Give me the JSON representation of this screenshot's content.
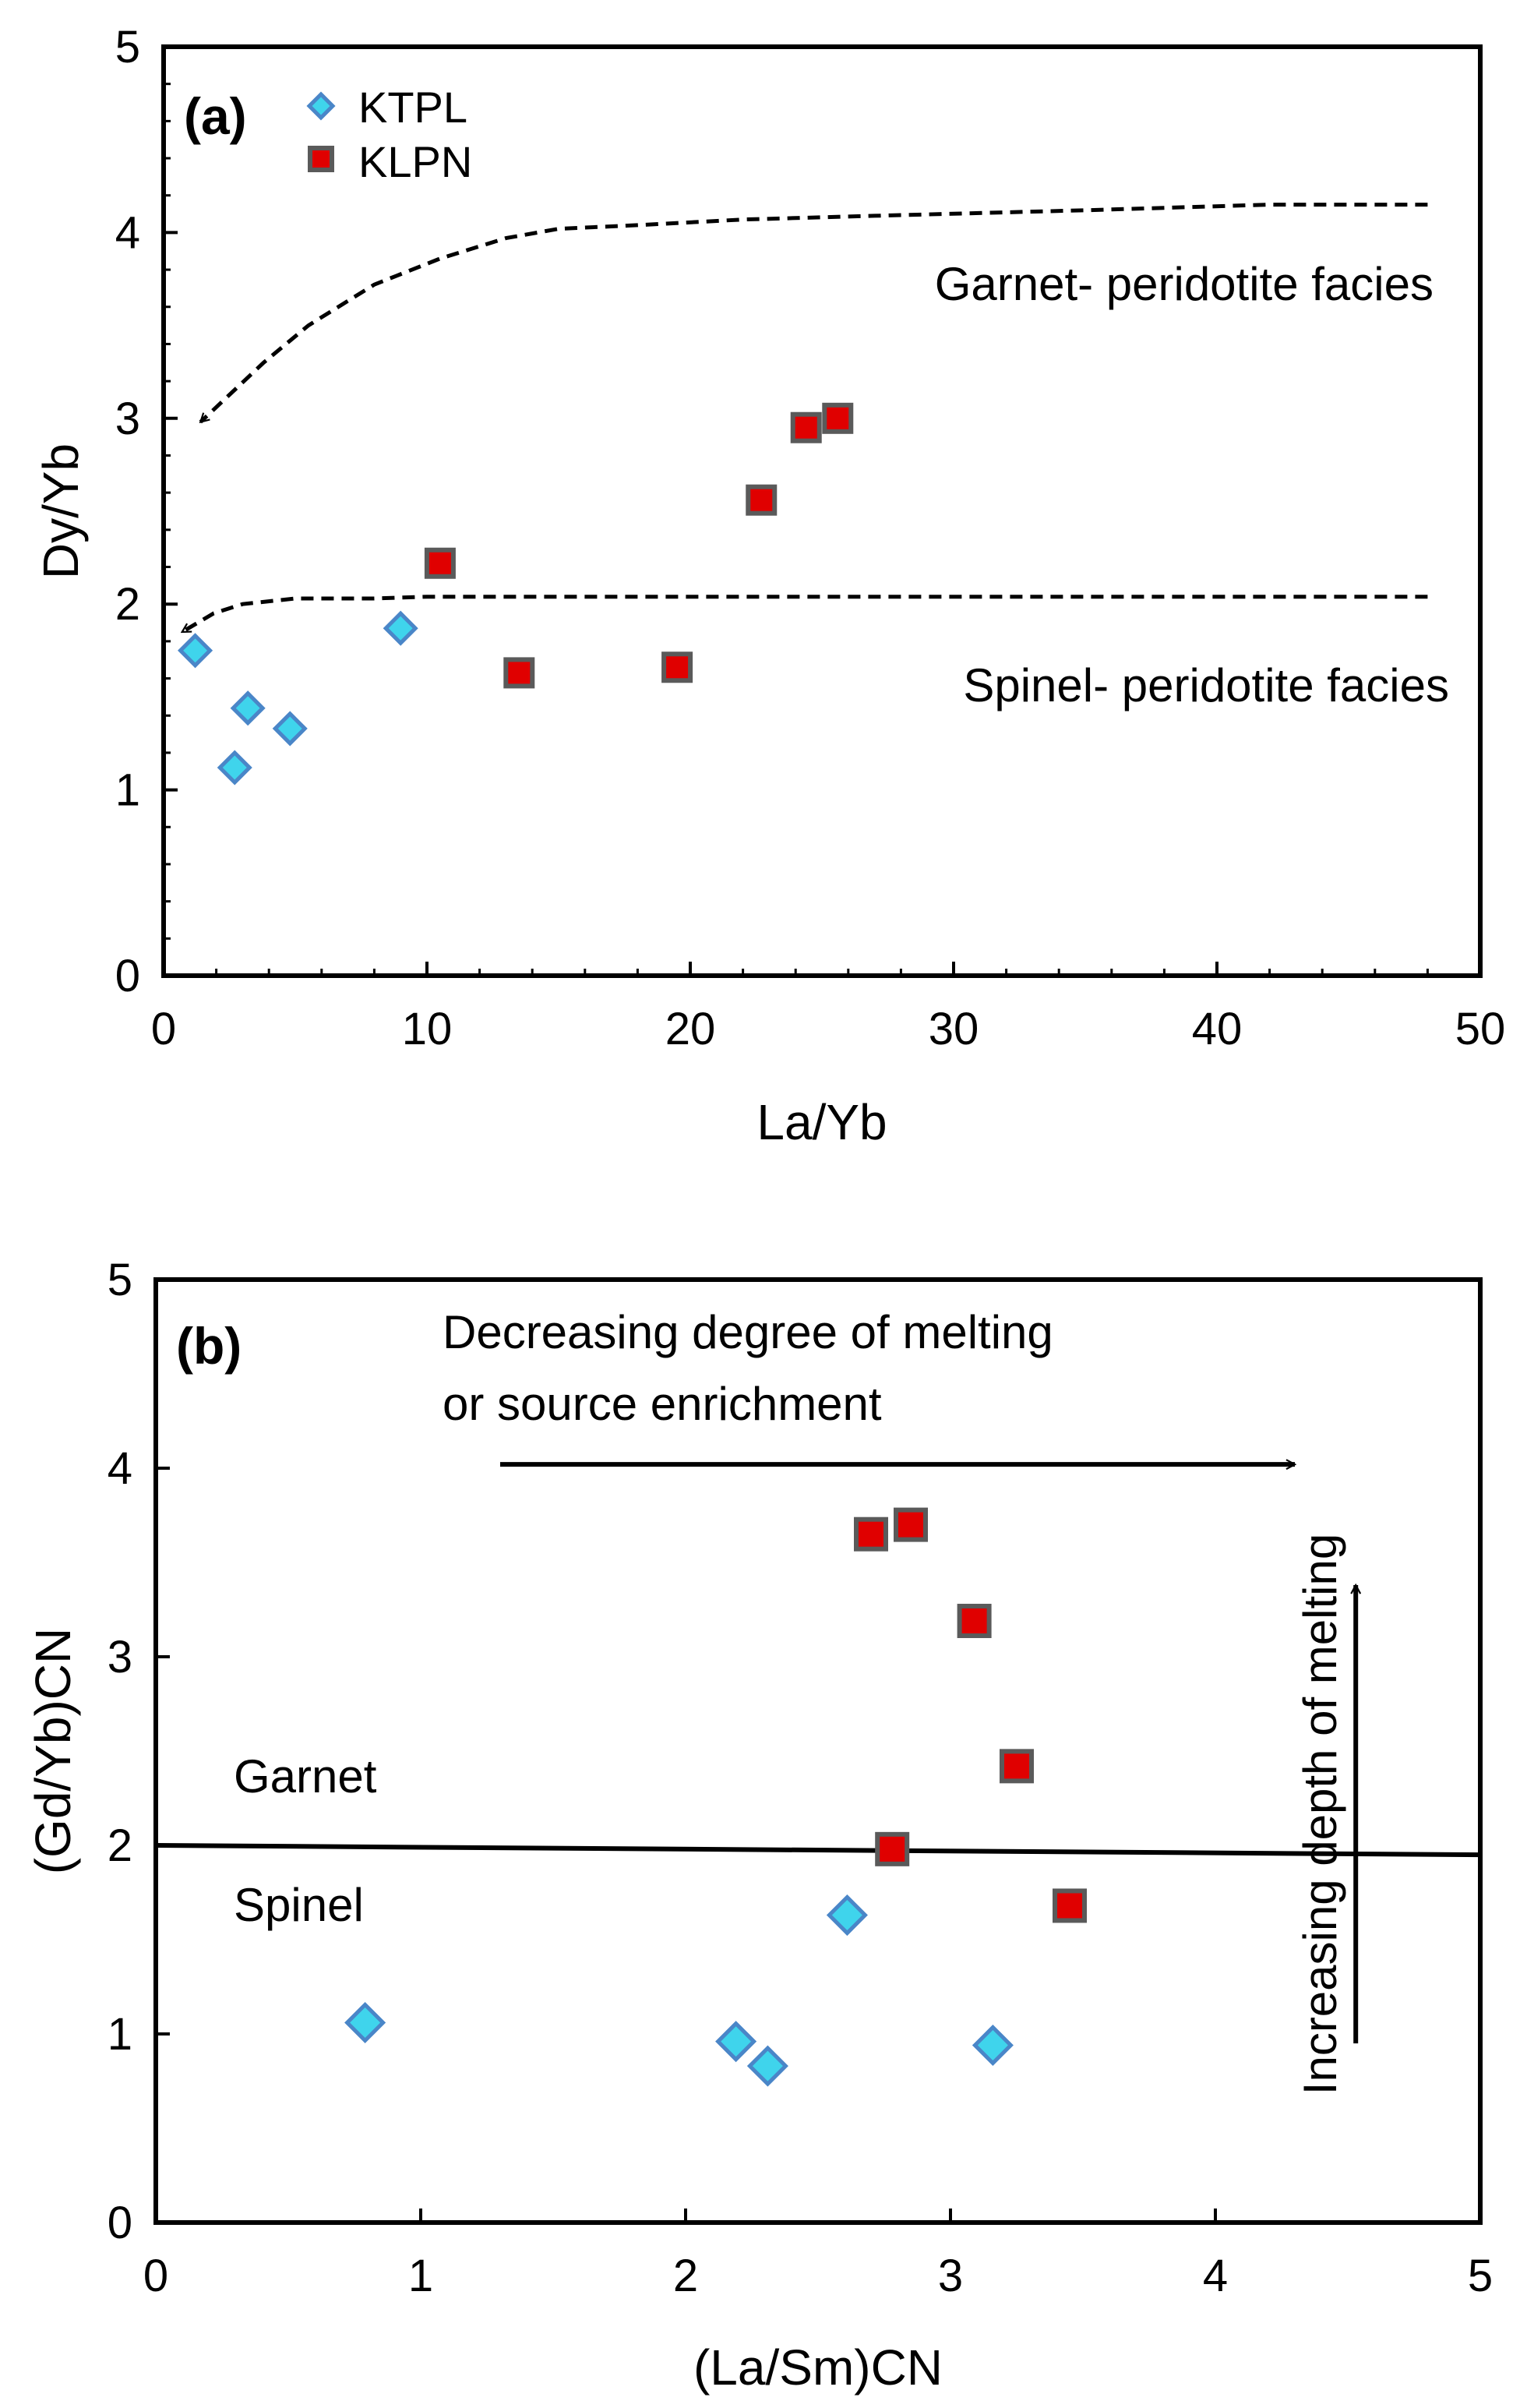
{
  "colors": {
    "ktpl_fill": "#3fd4ec",
    "ktpl_edge": "#4a86c8",
    "klpn_fill": "#e00000",
    "klpn_edge": "#5a5a5a",
    "line": "#000000"
  },
  "chart_data": [
    {
      "type": "scatter",
      "panel": "(a)",
      "xlabel": "La/Yb",
      "ylabel": "Dy/Yb",
      "xlim": [
        0,
        50
      ],
      "ylim": [
        0,
        5
      ],
      "x_ticks": [
        "0",
        "10",
        "20",
        "30",
        "40",
        "50"
      ],
      "y_ticks": [
        "0",
        "1",
        "2",
        "3",
        "4",
        "5"
      ],
      "legend": {
        "position": "top-left",
        "entries": [
          "KTPL",
          "KLPN"
        ]
      },
      "series": [
        {
          "name": "KTPL",
          "marker": "diamond",
          "points": [
            {
              "x": 1.2,
              "y": 1.75
            },
            {
              "x": 2.7,
              "y": 1.12
            },
            {
              "x": 3.2,
              "y": 1.44
            },
            {
              "x": 4.8,
              "y": 1.33
            },
            {
              "x": 9.0,
              "y": 1.87
            }
          ]
        },
        {
          "name": "KLPN",
          "marker": "square",
          "points": [
            {
              "x": 10.5,
              "y": 2.22
            },
            {
              "x": 13.5,
              "y": 1.63
            },
            {
              "x": 19.5,
              "y": 1.66
            },
            {
              "x": 22.7,
              "y": 2.56
            },
            {
              "x": 24.4,
              "y": 2.95
            },
            {
              "x": 25.6,
              "y": 3.0
            }
          ]
        }
      ],
      "reference_curves": [
        {
          "label": "Garnet- peridotite facies",
          "style": "dashed-arrow",
          "points": [
            [
              48,
              4.15
            ],
            [
              42,
              4.15
            ],
            [
              35,
              4.12
            ],
            [
              27,
              4.09
            ],
            [
              22,
              4.07
            ],
            [
              18,
              4.04
            ],
            [
              15,
              4.02
            ],
            [
              13,
              3.97
            ],
            [
              10.5,
              3.86
            ],
            [
              8,
              3.72
            ],
            [
              5.5,
              3.5
            ],
            [
              3.8,
              3.3
            ],
            [
              1.4,
              2.98
            ]
          ]
        },
        {
          "label": "Spinel- peridotite facies",
          "style": "dashed-arrow",
          "points": [
            [
              48,
              2.04
            ],
            [
              30,
              2.04
            ],
            [
              10,
              2.04
            ],
            [
              8,
              2.03
            ],
            [
              5,
              2.03
            ],
            [
              3,
              2.0
            ],
            [
              1.9,
              1.95
            ],
            [
              0.7,
              1.85
            ]
          ]
        }
      ]
    },
    {
      "type": "scatter",
      "panel": "(b)",
      "xlabel": "(La/Sm)CN",
      "ylabel": "(Gd/Yb)CN",
      "xlim": [
        0,
        5
      ],
      "ylim": [
        0,
        5
      ],
      "x_ticks": [
        "0",
        "1",
        "2",
        "3",
        "4",
        "5"
      ],
      "y_ticks": [
        "0",
        "1",
        "2",
        "3",
        "4",
        "5"
      ],
      "series": [
        {
          "name": "KTPL",
          "marker": "diamond",
          "points": [
            {
              "x": 0.79,
              "y": 1.06
            },
            {
              "x": 2.19,
              "y": 0.96
            },
            {
              "x": 2.31,
              "y": 0.83
            },
            {
              "x": 2.61,
              "y": 1.63
            },
            {
              "x": 3.16,
              "y": 0.94
            }
          ]
        },
        {
          "name": "KLPN",
          "marker": "square",
          "points": [
            {
              "x": 2.7,
              "y": 3.65
            },
            {
              "x": 2.85,
              "y": 3.7
            },
            {
              "x": 3.09,
              "y": 3.19
            },
            {
              "x": 3.25,
              "y": 2.42
            },
            {
              "x": 2.78,
              "y": 1.98
            },
            {
              "x": 3.45,
              "y": 1.68
            }
          ]
        }
      ],
      "boundary_line": {
        "from": [
          0,
          2.0
        ],
        "to": [
          5,
          1.95
        ]
      },
      "region_labels": [
        "Garnet",
        "Spinel"
      ],
      "annotations": {
        "melting_degree": [
          "Decreasing degree of melting",
          "or source enrichment"
        ],
        "melting_depth": "Increasing depth of melting"
      },
      "arrows": [
        {
          "from": [
            1.3,
            4.02
          ],
          "to": [
            4.3,
            4.02
          ]
        },
        {
          "from": [
            4.53,
            0.95
          ],
          "to": [
            4.53,
            3.38
          ]
        }
      ]
    }
  ]
}
